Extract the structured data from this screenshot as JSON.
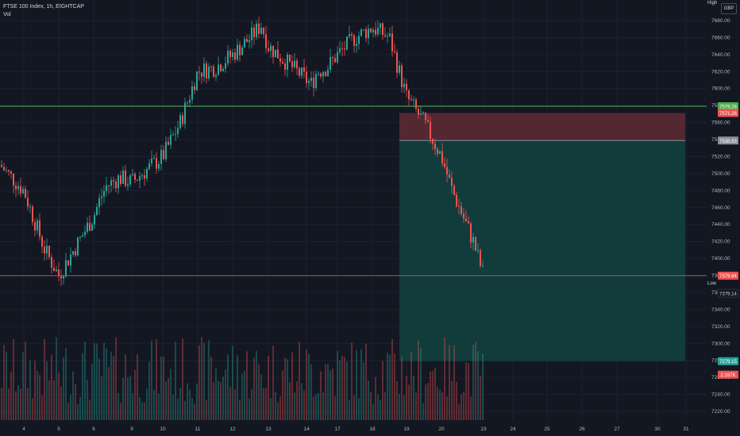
{
  "legend": {
    "symbol_line": "FTSE 100 Index, 1h, EIGHTCAP",
    "volume_label": "Vol"
  },
  "currency_label": "GBP",
  "high_label": "High",
  "low_label": "Low",
  "colors": {
    "background": "#131722",
    "up": "#26a69a",
    "down": "#ef5350",
    "grid": "#1c2030",
    "support": "#9c5a66",
    "resistance": "#4caf50",
    "stop_zone": "#5b2a33",
    "target_zone": "#12403e",
    "entry_line": "#8a8f99"
  },
  "chart_data": {
    "type": "candlestick",
    "title": "FTSE 100 Index, 1h, EIGHTCAP",
    "y_ticks": [
      7680,
      7660,
      7640,
      7620,
      7600,
      7580,
      7560,
      7540,
      7520,
      7500,
      7480,
      7460,
      7440,
      7420,
      7400,
      7380,
      7360,
      7340,
      7320,
      7300,
      7280,
      7260,
      7240,
      7220
    ],
    "ylim": [
      7215,
      7700
    ],
    "x_ticks": [
      "4",
      "5",
      "6",
      "9",
      "10",
      "11",
      "12",
      "13",
      "14",
      "17",
      "18",
      "19",
      "20",
      "23",
      "24",
      "25",
      "26",
      "27",
      "30",
      "31"
    ],
    "price_labels": [
      {
        "text": "7579.28",
        "value": 7579.28,
        "color": "#4caf50"
      },
      {
        "text": "7571.26",
        "value": 7571.26,
        "color": "#ef5350"
      },
      {
        "text": "7538.83",
        "value": 7538.83,
        "color": "#8a8f99"
      },
      {
        "text": "7379.84",
        "value": 7379.84,
        "color": "#ef5350"
      },
      {
        "text": "7279.15",
        "value": 7279.15,
        "color": "#26a69a"
      },
      {
        "text": "2.287K",
        "value": null,
        "color": "#ef5350"
      }
    ],
    "low_value": "7379.14",
    "horizontal_lines": {
      "resistance": 7579.28,
      "support": 7379.84
    },
    "position": {
      "type": "short",
      "entry": 7538.83,
      "stop": 7571.26,
      "target": 7279.15,
      "start_date": "19",
      "end_date": "31"
    },
    "price_path": [
      [
        "3",
        7510
      ],
      [
        "4",
        7480
      ],
      [
        "4.6",
        7410
      ],
      [
        "5",
        7380
      ],
      [
        "5.5",
        7415
      ],
      [
        "6",
        7450
      ],
      [
        "6.5",
        7470
      ],
      [
        "7",
        7485
      ],
      [
        "8",
        7495
      ],
      [
        "9",
        7490
      ],
      [
        "9.5",
        7505
      ],
      [
        "10",
        7520
      ],
      [
        "10.5",
        7560
      ],
      [
        "11",
        7620
      ],
      [
        "11.5",
        7625
      ],
      [
        "12",
        7640
      ],
      [
        "12.5",
        7660
      ],
      [
        "12.8",
        7675
      ],
      [
        "13",
        7650
      ],
      [
        "13.5",
        7630
      ],
      [
        "14",
        7610
      ],
      [
        "14.5",
        7605
      ],
      [
        "15",
        7620
      ],
      [
        "16",
        7625
      ],
      [
        "17",
        7640
      ],
      [
        "17.5",
        7660
      ],
      [
        "18",
        7672
      ],
      [
        "18.5",
        7660
      ],
      [
        "19",
        7590
      ],
      [
        "19.5",
        7560
      ],
      [
        "20",
        7520
      ],
      [
        "20.5",
        7480
      ],
      [
        "21",
        7450
      ],
      [
        "22",
        7420
      ],
      [
        "23",
        7380
      ]
    ]
  }
}
